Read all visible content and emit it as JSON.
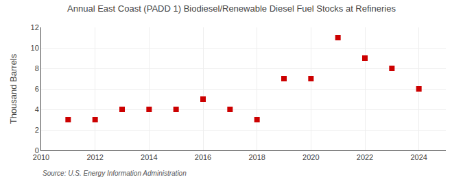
{
  "chart_data": {
    "type": "scatter",
    "title": "Annual East Coast (PADD 1) Biodiesel/Renewable Diesel Fuel Stocks at Refineries",
    "ylabel": "Thousand Barrels",
    "source": "Source: U.S. Energy Information Administration",
    "x": [
      2011,
      2012,
      2013,
      2014,
      2015,
      2016,
      2017,
      2018,
      2019,
      2020,
      2021,
      2022,
      2023,
      2024
    ],
    "values": [
      3,
      3,
      4,
      4,
      4,
      5,
      4,
      3,
      7,
      7,
      11,
      9,
      8,
      6
    ],
    "xlim": [
      2010,
      2025
    ],
    "ylim": [
      0,
      12
    ],
    "xticks": [
      2010,
      2012,
      2014,
      2016,
      2018,
      2020,
      2022,
      2024
    ],
    "yticks": [
      0,
      2,
      4,
      6,
      8,
      10,
      12
    ],
    "color": "#cc0000",
    "marker": "square",
    "grid": true
  }
}
